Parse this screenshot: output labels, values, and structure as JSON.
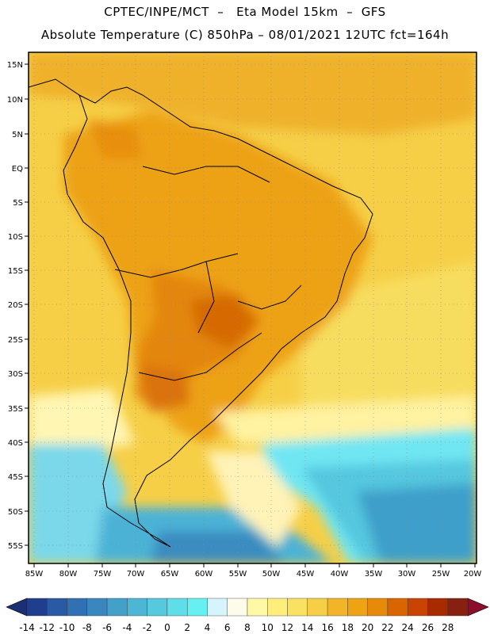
{
  "header": {
    "line1": "CPTEC/INPE/MCT  –   Eta Model 15km  –  GFS",
    "line2": "Absolute Temperature (C) 850hPa – 08/01/2021 12UTC fct=164h"
  },
  "map": {
    "lat_labels": [
      "15N",
      "10N",
      "5N",
      "EQ",
      "5S",
      "10S",
      "15S",
      "20S",
      "25S",
      "30S",
      "35S",
      "40S",
      "45S",
      "50S",
      "55S"
    ],
    "lon_labels": [
      "85W",
      "80W",
      "75W",
      "70W",
      "65W",
      "60W",
      "55W",
      "50W",
      "45W",
      "40W",
      "35W",
      "30W",
      "25W",
      "20W"
    ]
  },
  "colorbar": {
    "labels": [
      "-14",
      "-12",
      "-10",
      "-8",
      "-6",
      "-4",
      "-2",
      "0",
      "2",
      "4",
      "6",
      "8",
      "10",
      "12",
      "14",
      "16",
      "18",
      "20",
      "22",
      "24",
      "26",
      "28"
    ],
    "colors": [
      "#1f3f8e",
      "#2a5aa3",
      "#3171b3",
      "#3a87bf",
      "#42a0c9",
      "#4cb6d4",
      "#57c9de",
      "#5fdde8",
      "#67f0f2",
      "#d5f4fb",
      "#fffbea",
      "#fff8a6",
      "#ffee7b",
      "#fae161",
      "#f5cf45",
      "#f2b52a",
      "#eea315",
      "#e78a09",
      "#d96500",
      "#c84400",
      "#a82b00",
      "#872010"
    ],
    "low_color": "#1c2f74",
    "high_color": "#8a0f2a"
  }
}
